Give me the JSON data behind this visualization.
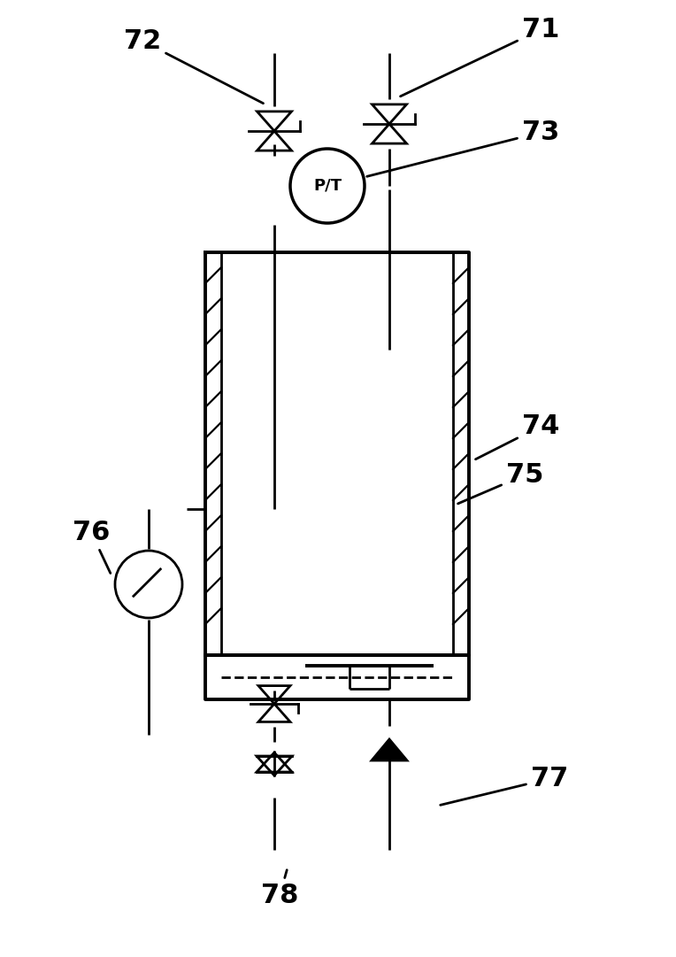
{
  "bg_color": "#ffffff",
  "line_color": "#000000",
  "lw": 2.0,
  "tlw": 2.8,
  "label_fontsize": 22,
  "pt_fontsize": 13,
  "figsize": [
    7.64,
    10.81
  ],
  "dpi": 100
}
